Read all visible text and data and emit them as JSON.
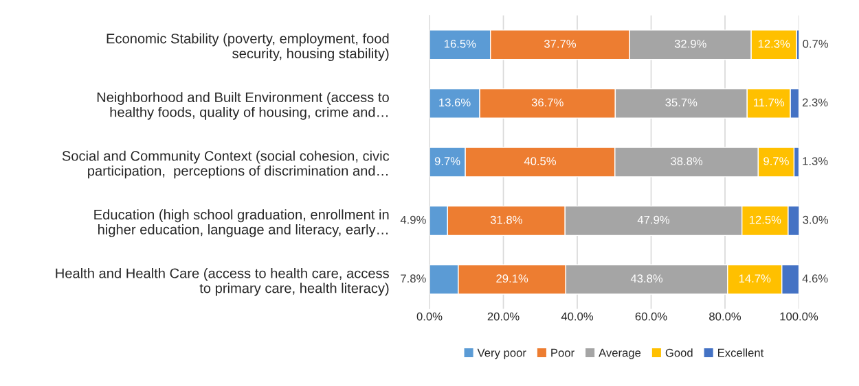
{
  "chart_data": {
    "type": "bar",
    "orientation": "horizontal",
    "stacked": true,
    "categories": [
      "Economic Stability (poverty, employment, food\nsecurity, housing stability)",
      "Neighborhood and Built Environment (access to\nhealthy foods, quality of housing, crime and…",
      "Social and Community Context (social cohesion, civic\nparticipation,  perceptions of discrimination and…",
      "Education (high school graduation, enrollment in\nhigher education, language and literacy, early…",
      "Health and Health Care (access to health care, access\nto primary care, health literacy)"
    ],
    "series": [
      {
        "name": "Very poor",
        "color": "#5b9bd5",
        "values": [
          16.5,
          13.6,
          9.7,
          4.9,
          7.8
        ],
        "value_labels": [
          "16.5%",
          "13.6%",
          "9.7%",
          "4.9%",
          "7.8%"
        ]
      },
      {
        "name": "Poor",
        "color": "#ed7d31",
        "values": [
          37.7,
          36.7,
          40.5,
          31.8,
          29.1
        ],
        "value_labels": [
          "37.7%",
          "36.7%",
          "40.5%",
          "31.8%",
          "29.1%"
        ]
      },
      {
        "name": "Average",
        "color": "#a5a5a5",
        "values": [
          32.9,
          35.7,
          38.8,
          47.9,
          43.8
        ],
        "value_labels": [
          "32.9%",
          "35.7%",
          "38.8%",
          "47.9%",
          "43.8%"
        ]
      },
      {
        "name": "Good",
        "color": "#ffc000",
        "values": [
          12.3,
          11.7,
          9.7,
          12.5,
          14.7
        ],
        "value_labels": [
          "12.3%",
          "11.7%",
          "9.7%",
          "12.5%",
          "14.7%"
        ]
      },
      {
        "name": "Excellent",
        "color": "#4472c4",
        "values": [
          0.7,
          2.3,
          1.3,
          3.0,
          4.6
        ],
        "value_labels": [
          "0.7%",
          "2.3%",
          "1.3%",
          "3.0%",
          "4.6%"
        ]
      }
    ],
    "xlim": [
      0,
      100
    ],
    "xticks": [
      {
        "value": 0,
        "label": "0.0%"
      },
      {
        "value": 20,
        "label": "20.0%"
      },
      {
        "value": 40,
        "label": "40.0%"
      },
      {
        "value": 60,
        "label": "60.0%"
      },
      {
        "value": 80,
        "label": "80.0%"
      },
      {
        "value": 100,
        "label": "100.0%"
      }
    ],
    "grid": "x",
    "legend": "bottom"
  }
}
